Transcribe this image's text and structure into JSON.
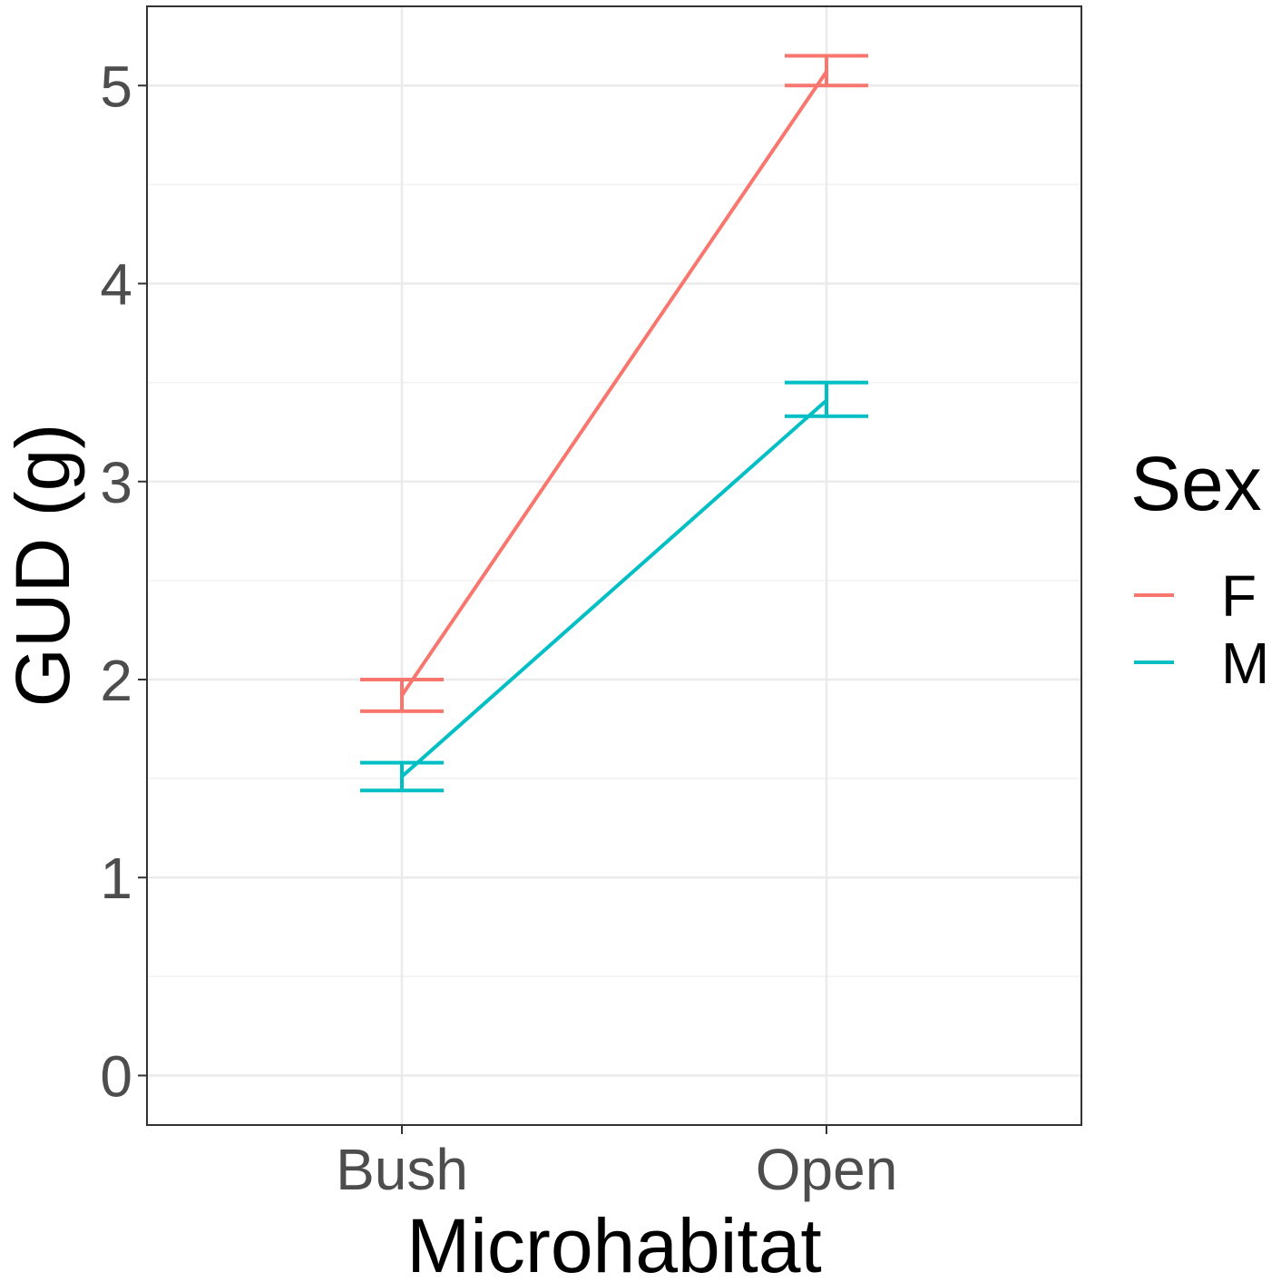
{
  "chart_data": {
    "type": "line",
    "xlabel": "Microhabitat",
    "ylabel": "GUD (g)",
    "categories": [
      "Bush",
      "Open"
    ],
    "ylim": [
      -0.25,
      5.4
    ],
    "yticks": [
      "0",
      "1",
      "2",
      "3",
      "4",
      "5"
    ],
    "grid": true,
    "legend": {
      "title": "Sex",
      "placement": "right"
    },
    "series": [
      {
        "name": "F",
        "color": "#F8766D",
        "values": [
          1.92,
          5.07
        ],
        "error_low": [
          1.84,
          5.0
        ],
        "error_high": [
          2.0,
          5.15
        ]
      },
      {
        "name": "M",
        "color": "#00BFC4",
        "values": [
          1.51,
          3.41
        ],
        "error_low": [
          1.44,
          3.33
        ],
        "error_high": [
          1.58,
          3.5
        ]
      }
    ]
  }
}
